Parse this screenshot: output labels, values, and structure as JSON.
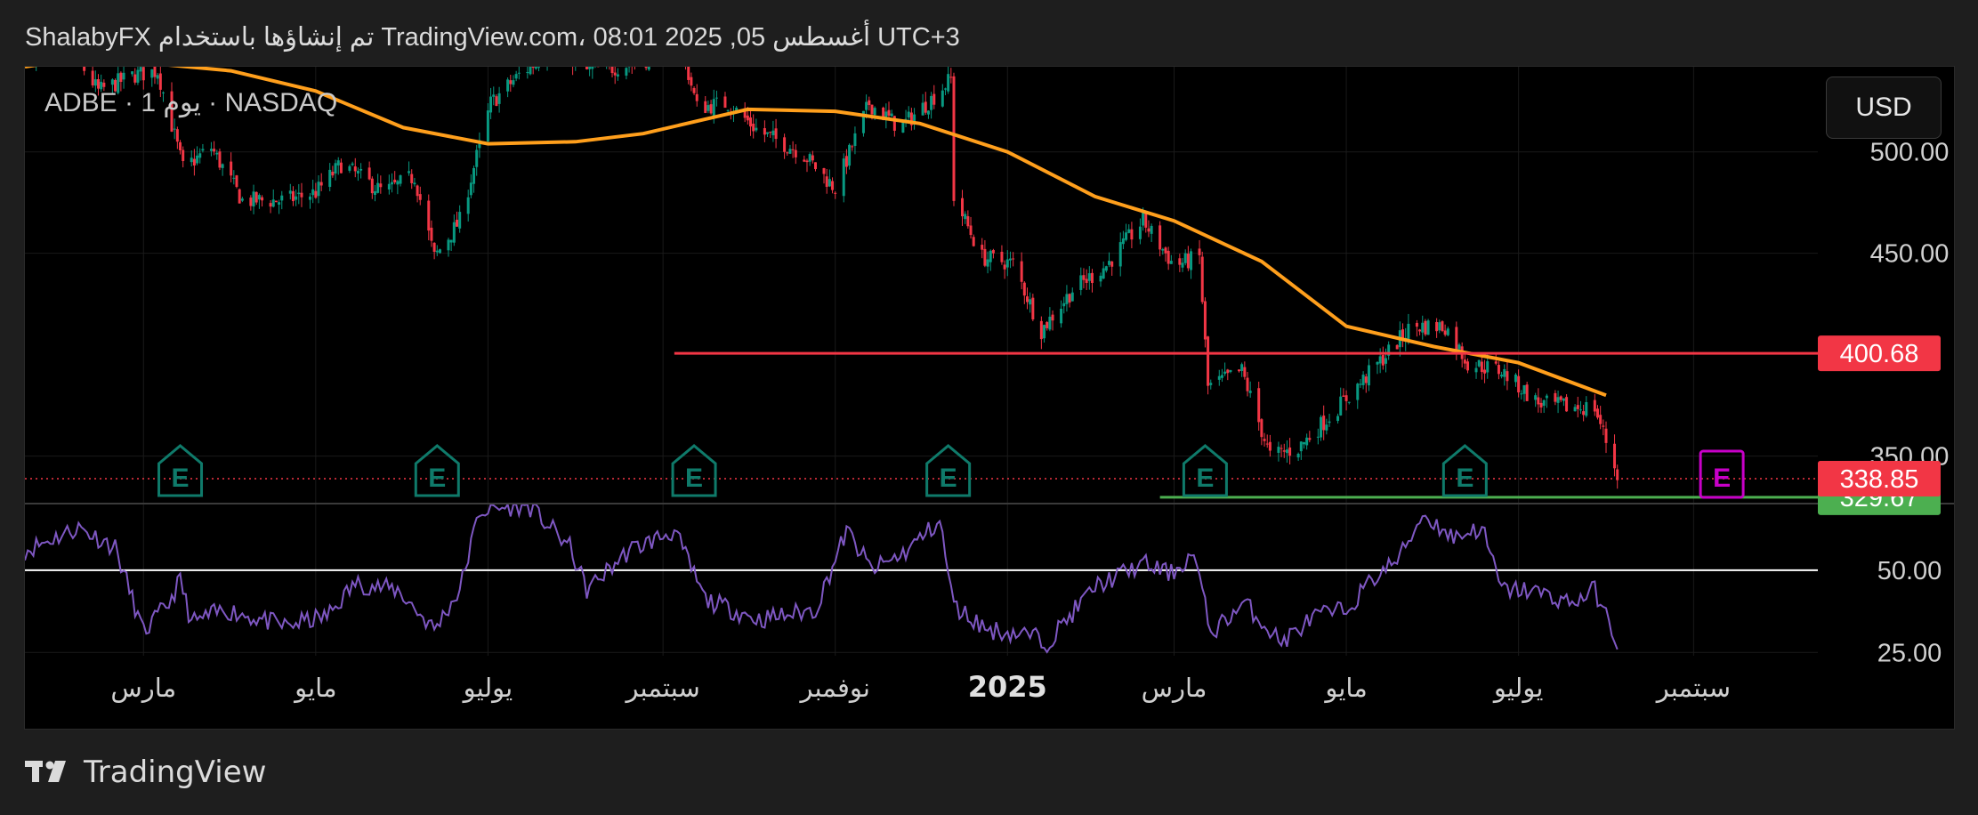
{
  "header": {
    "title": "ShalabyFX تم إنشاؤها باستخدام TradingView.com، 08:01 2025 ,05 أغسطس UTC+3"
  },
  "symbol": {
    "label": "ADBE · 1 يوم · NASDAQ"
  },
  "currency_button": {
    "label": "USD"
  },
  "footer": {
    "brand": "TradingView"
  },
  "colors": {
    "background": "#000000",
    "up_candle": "#089981",
    "down_candle": "#f23645",
    "moving_average": "#ff9f1c",
    "resistance": "#f23645",
    "support": "#4caf50",
    "rsi": "#7e57c2",
    "earnings": "#0f7a6a",
    "earnings_upcoming": "#c800c8"
  },
  "chart_data": [
    {
      "type": "candlestick",
      "title": "",
      "price_axis_ticks": [
        "500.00",
        "450.00",
        "350.00"
      ],
      "ylim": [
        327,
        542
      ],
      "x_ticks": [
        "مارس",
        "مايو",
        "يوليو",
        "سبتمبر",
        "نوفمبر",
        "2025",
        "مارس",
        "مايو",
        "يوليو",
        "سبتمبر"
      ],
      "x_range": [
        "2024-01-19",
        "2025-10-15"
      ],
      "ohlc_anchors": [
        [
          "2024-01-22",
          548
        ],
        [
          "2024-02-01",
          558
        ],
        [
          "2024-02-14",
          530
        ],
        [
          "2024-02-27",
          538
        ],
        [
          "2024-03-06",
          540
        ],
        [
          "2024-03-15",
          492
        ],
        [
          "2024-03-25",
          502
        ],
        [
          "2024-04-05",
          476
        ],
        [
          "2024-04-20",
          476
        ],
        [
          "2024-05-01",
          480
        ],
        [
          "2024-05-10",
          494
        ],
        [
          "2024-05-25",
          480
        ],
        [
          "2024-06-05",
          488
        ],
        [
          "2024-06-12",
          448
        ],
        [
          "2024-06-21",
          466
        ],
        [
          "2024-07-02",
          524
        ],
        [
          "2024-07-12",
          538
        ],
        [
          "2024-07-26",
          552
        ],
        [
          "2024-08-05",
          540
        ],
        [
          "2024-08-16",
          542
        ],
        [
          "2024-08-27",
          546
        ],
        [
          "2024-09-05",
          566
        ],
        [
          "2024-09-13",
          522
        ],
        [
          "2024-09-24",
          524
        ],
        [
          "2024-10-05",
          510
        ],
        [
          "2024-10-20",
          500
        ],
        [
          "2024-11-01",
          482
        ],
        [
          "2024-11-13",
          524
        ],
        [
          "2024-11-24",
          512
        ],
        [
          "2024-12-05",
          526
        ],
        [
          "2024-12-12",
          536
        ],
        [
          "2024-12-13",
          478
        ],
        [
          "2024-12-23",
          448
        ],
        [
          "2025-01-03",
          445
        ],
        [
          "2025-01-13",
          412
        ],
        [
          "2025-01-24",
          432
        ],
        [
          "2025-02-05",
          444
        ],
        [
          "2025-02-18",
          466
        ],
        [
          "2025-03-01",
          444
        ],
        [
          "2025-03-10",
          448
        ],
        [
          "2025-03-13",
          384
        ],
        [
          "2025-03-25",
          392
        ],
        [
          "2025-04-04",
          350
        ],
        [
          "2025-04-14",
          354
        ],
        [
          "2025-04-28",
          374
        ],
        [
          "2025-05-10",
          392
        ],
        [
          "2025-05-24",
          414
        ],
        [
          "2025-06-05",
          414
        ],
        [
          "2025-06-13",
          396
        ],
        [
          "2025-06-25",
          392
        ],
        [
          "2025-07-08",
          376
        ],
        [
          "2025-07-20",
          374
        ],
        [
          "2025-07-28",
          374
        ],
        [
          "2025-08-05",
          341
        ]
      ],
      "moving_average": [
        [
          "2024-01-19",
          542
        ],
        [
          "2024-02-08",
          546
        ],
        [
          "2024-03-01",
          544
        ],
        [
          "2024-04-01",
          540
        ],
        [
          "2024-05-01",
          530
        ],
        [
          "2024-06-01",
          512
        ],
        [
          "2024-07-01",
          504
        ],
        [
          "2024-08-01",
          505
        ],
        [
          "2024-08-25",
          509
        ],
        [
          "2024-10-01",
          521
        ],
        [
          "2024-11-01",
          520
        ],
        [
          "2024-12-01",
          514
        ],
        [
          "2025-01-01",
          500
        ],
        [
          "2025-02-01",
          478
        ],
        [
          "2025-03-01",
          466
        ],
        [
          "2025-04-01",
          446
        ],
        [
          "2025-05-01",
          414
        ],
        [
          "2025-06-01",
          404
        ],
        [
          "2025-07-01",
          396
        ],
        [
          "2025-08-01",
          380
        ]
      ],
      "horizontal_levels": [
        {
          "value": 400.68,
          "label": "400.68",
          "color": "#f23645",
          "start": "2024-09-05"
        },
        {
          "value": 329.67,
          "label": "329.67",
          "color": "#4caf50",
          "start": "2025-02-24"
        },
        {
          "value": 338.85,
          "label": "338.85",
          "color": "#f23645",
          "style": "dotted",
          "start": "2024-01-19"
        }
      ],
      "earnings_markers": [
        {
          "date": "2024-03-14",
          "label": "E"
        },
        {
          "date": "2024-06-13",
          "label": "E"
        },
        {
          "date": "2024-09-12",
          "label": "E"
        },
        {
          "date": "2024-12-11",
          "label": "E"
        },
        {
          "date": "2025-03-12",
          "label": "E"
        },
        {
          "date": "2025-06-12",
          "label": "E"
        },
        {
          "date": "2025-09-11",
          "label": "E",
          "upcoming": true
        }
      ]
    },
    {
      "type": "line",
      "title": "",
      "rsi_axis_ticks": [
        "50.00",
        "25.00"
      ],
      "ylim": [
        24,
        70
      ],
      "reference_line": 50,
      "series": [
        {
          "color": "#7e57c2",
          "points": [
            [
              "2024-01-19",
              56
            ],
            [
              "2024-02-07",
              63
            ],
            [
              "2024-02-20",
              57
            ],
            [
              "2024-03-01",
              31
            ],
            [
              "2024-03-10",
              40
            ],
            [
              "2024-03-14",
              47
            ],
            [
              "2024-03-18",
              34
            ],
            [
              "2024-03-30",
              38
            ],
            [
              "2024-04-20",
              33
            ],
            [
              "2024-05-05",
              36
            ],
            [
              "2024-05-15",
              46
            ],
            [
              "2024-05-30",
              44
            ],
            [
              "2024-06-12",
              32
            ],
            [
              "2024-06-21",
              44
            ],
            [
              "2024-06-28",
              68
            ],
            [
              "2024-07-15",
              70
            ],
            [
              "2024-07-30",
              57
            ],
            [
              "2024-08-05",
              44
            ],
            [
              "2024-08-20",
              56
            ],
            [
              "2024-09-05",
              62
            ],
            [
              "2024-09-16",
              41
            ],
            [
              "2024-10-05",
              35
            ],
            [
              "2024-10-25",
              38
            ],
            [
              "2024-11-05",
              62
            ],
            [
              "2024-11-14",
              50
            ],
            [
              "2024-11-25",
              55
            ],
            [
              "2024-12-08",
              65
            ],
            [
              "2024-12-13",
              39
            ],
            [
              "2024-12-25",
              32
            ],
            [
              "2025-01-10",
              30
            ],
            [
              "2025-01-15",
              28
            ],
            [
              "2025-02-01",
              45
            ],
            [
              "2025-02-18",
              52
            ],
            [
              "2025-02-28",
              49
            ],
            [
              "2025-03-08",
              55
            ],
            [
              "2025-03-14",
              31
            ],
            [
              "2025-03-26",
              40
            ],
            [
              "2025-04-08",
              28
            ],
            [
              "2025-04-20",
              36
            ],
            [
              "2025-05-01",
              38
            ],
            [
              "2025-05-10",
              47
            ],
            [
              "2025-05-20",
              54
            ],
            [
              "2025-05-28",
              67
            ],
            [
              "2025-06-08",
              60
            ],
            [
              "2025-06-18",
              63
            ],
            [
              "2025-06-25",
              44
            ],
            [
              "2025-07-05",
              44
            ],
            [
              "2025-07-20",
              40
            ],
            [
              "2025-07-28",
              44
            ],
            [
              "2025-08-05",
              28
            ]
          ]
        }
      ]
    }
  ]
}
